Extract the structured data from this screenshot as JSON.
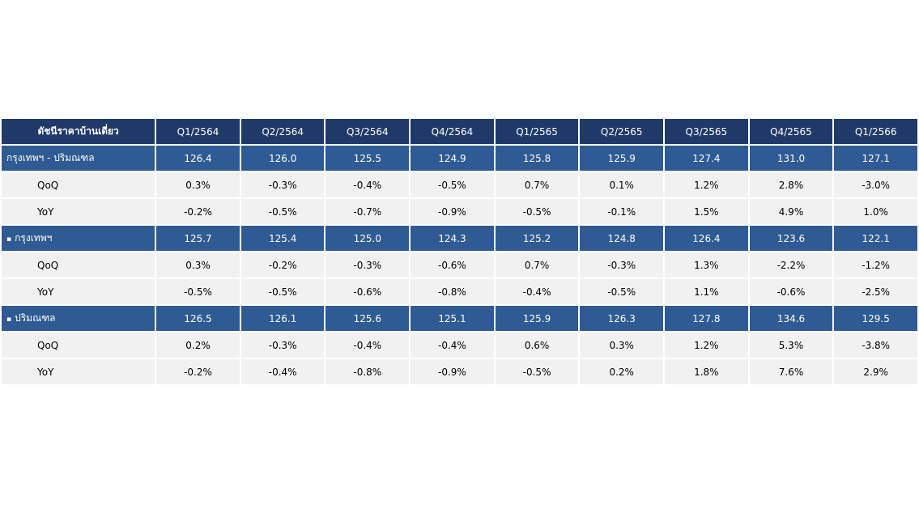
{
  "colors": {
    "header_bg": "#1f3a68",
    "group_bg": "#2e5b93",
    "sub_bg": "#f1f1f1",
    "negative": "#e0202e"
  },
  "chart_data": {
    "type": "table",
    "header_label": "ดัชนีราคาบ้านเดี่ยว",
    "columns": [
      "Q1/2564",
      "Q2/2564",
      "Q3/2564",
      "Q4/2564",
      "Q1/2565",
      "Q2/2565",
      "Q3/2565",
      "Q4/2565",
      "Q1/2566"
    ],
    "groups": [
      {
        "name": "กรุงเทพฯ - ปริมณฑล",
        "bullet": "",
        "index": [
          "126.4",
          "126.0",
          "125.5",
          "124.9",
          "125.8",
          "125.9",
          "127.4",
          "131.0",
          "127.1"
        ],
        "qoq": [
          "0.3%",
          "-0.3%",
          "-0.4%",
          "-0.5%",
          "0.7%",
          "0.1%",
          "1.2%",
          "2.8%",
          "-3.0%"
        ],
        "yoy": [
          "-0.2%",
          "-0.5%",
          "-0.7%",
          "-0.9%",
          "-0.5%",
          "-0.1%",
          "1.5%",
          "4.9%",
          "1.0%"
        ]
      },
      {
        "name": "กรุงเทพฯ",
        "bullet": "▪",
        "index": [
          "125.7",
          "125.4",
          "125.0",
          "124.3",
          "125.2",
          "124.8",
          "126.4",
          "123.6",
          "122.1"
        ],
        "qoq": [
          "0.3%",
          "-0.2%",
          "-0.3%",
          "-0.6%",
          "0.7%",
          "-0.3%",
          "1.3%",
          "-2.2%",
          "-1.2%"
        ],
        "yoy": [
          "-0.5%",
          "-0.5%",
          "-0.6%",
          "-0.8%",
          "-0.4%",
          "-0.5%",
          "1.1%",
          "-0.6%",
          "-2.5%"
        ]
      },
      {
        "name": "ปริมณฑล",
        "bullet": "▪",
        "index": [
          "126.5",
          "126.1",
          "125.6",
          "125.1",
          "125.9",
          "126.3",
          "127.8",
          "134.6",
          "129.5"
        ],
        "qoq": [
          "0.2%",
          "-0.3%",
          "-0.4%",
          "-0.4%",
          "0.6%",
          "0.3%",
          "1.2%",
          "5.3%",
          "-3.8%"
        ],
        "yoy": [
          "-0.2%",
          "-0.4%",
          "-0.8%",
          "-0.9%",
          "-0.5%",
          "0.2%",
          "1.8%",
          "7.6%",
          "2.9%"
        ]
      }
    ],
    "sub_labels": {
      "qoq": "QoQ",
      "yoy": "YoY"
    }
  }
}
